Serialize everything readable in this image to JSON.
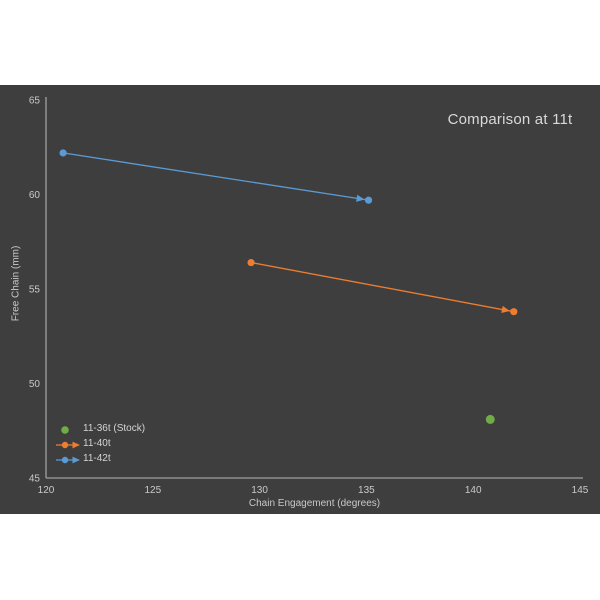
{
  "chart_data": {
    "type": "scatter",
    "title": "Comparison at 11t",
    "xlabel": "Chain Engagement (degrees)",
    "ylabel": "Free Chain (mm)",
    "xlim": [
      120,
      145
    ],
    "ylim": [
      45,
      65
    ],
    "xticks": [
      120,
      125,
      130,
      135,
      140,
      145
    ],
    "yticks": [
      65,
      60,
      55,
      50,
      45
    ],
    "grid": false,
    "legend_position": "inside-bottom-left",
    "series": [
      {
        "name": "11-36t (Stock)",
        "color": "#70AD47",
        "marker": "dot",
        "points": [
          [
            140.8,
            48.1
          ]
        ]
      },
      {
        "name": "11-40t",
        "color": "#ED7D31",
        "marker": "arrow-line",
        "points": [
          [
            129.6,
            56.4
          ],
          [
            141.9,
            53.8
          ]
        ]
      },
      {
        "name": "11-42t",
        "color": "#5B9BD5",
        "marker": "arrow-line",
        "points": [
          [
            120.8,
            62.2
          ],
          [
            135.1,
            59.7
          ]
        ]
      }
    ]
  },
  "colors": {
    "page_bg": "#FFFFFF",
    "panel_bg": "#3E3E3E",
    "axis_line": "#A0A0A0",
    "tick_text": "#C9C9C9",
    "title_text": "#D9D9D9"
  }
}
